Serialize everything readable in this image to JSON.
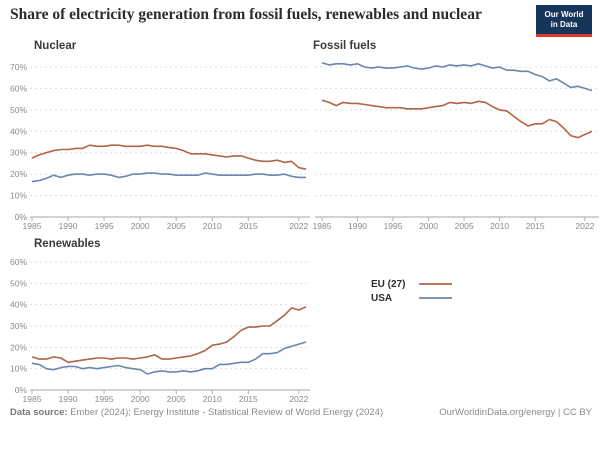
{
  "header": {
    "title": "Share of electricity generation from fossil fuels, renewables and nuclear",
    "logo": {
      "line1": "Our World",
      "line2": "in Data"
    }
  },
  "legend": {
    "entries": [
      {
        "label": "EU (27)",
        "color": "#a85332"
      },
      {
        "label": "USA",
        "color": "#5b7aa6"
      }
    ]
  },
  "footer": {
    "datasource_label": "Data source:",
    "datasource_text": " Ember (2024); Energy Institute - Statistical Review of World Energy (2024)",
    "attribution": "OurWorldinData.org/energy | CC BY"
  },
  "colors": {
    "eu": "#a85332",
    "usa": "#5b7aa6",
    "grid": "#dddddd",
    "axis": "#a6a6a6",
    "tick": "#b0b0b0",
    "tick_text": "#8a8a8a"
  },
  "chart_data": [
    {
      "type": "line",
      "title": "Nuclear",
      "x": [
        1985,
        1986,
        1987,
        1988,
        1989,
        1990,
        1991,
        1992,
        1993,
        1994,
        1995,
        1996,
        1997,
        1998,
        1999,
        2000,
        2001,
        2002,
        2003,
        2004,
        2005,
        2006,
        2007,
        2008,
        2009,
        2010,
        2011,
        2012,
        2013,
        2014,
        2015,
        2016,
        2017,
        2018,
        2019,
        2020,
        2021,
        2022,
        2023
      ],
      "x_ticks": [
        1985,
        1990,
        1995,
        2000,
        2005,
        2010,
        2015,
        2022
      ],
      "ylim": [
        0,
        70
      ],
      "y_ticks": [
        0,
        10,
        20,
        30,
        40,
        50,
        60,
        70
      ],
      "show_y_labels": true,
      "grid": true,
      "series": [
        {
          "name": "EU (27)",
          "color": "#a85332",
          "values": [
            27.5,
            29,
            30,
            31,
            31.5,
            31.5,
            32,
            32,
            33.5,
            33,
            33,
            33.5,
            33.5,
            33,
            33,
            33,
            33.5,
            33,
            33,
            32.5,
            32,
            31,
            29.5,
            29.5,
            29.5,
            29,
            28.5,
            28,
            28.5,
            28.5,
            27.5,
            26.5,
            26,
            26,
            26.5,
            25.5,
            26,
            23,
            22.3
          ]
        },
        {
          "name": "USA",
          "color": "#5b7aa6",
          "values": [
            16.5,
            17,
            18,
            19.5,
            18.5,
            19.5,
            20,
            20,
            19.5,
            20,
            20,
            19.5,
            18.5,
            19,
            20,
            20,
            20.5,
            20.5,
            20,
            20,
            19.5,
            19.5,
            19.5,
            19.5,
            20.5,
            20,
            19.5,
            19.5,
            19.5,
            19.5,
            19.5,
            20,
            20,
            19.5,
            19.5,
            20,
            19,
            18.5,
            18.5
          ]
        }
      ]
    },
    {
      "type": "line",
      "title": "Fossil fuels",
      "x": [
        1985,
        1986,
        1987,
        1988,
        1989,
        1990,
        1991,
        1992,
        1993,
        1994,
        1995,
        1996,
        1997,
        1998,
        1999,
        2000,
        2001,
        2002,
        2003,
        2004,
        2005,
        2006,
        2007,
        2008,
        2009,
        2010,
        2011,
        2012,
        2013,
        2014,
        2015,
        2016,
        2017,
        2018,
        2019,
        2020,
        2021,
        2022,
        2023
      ],
      "x_ticks": [
        1985,
        1990,
        1995,
        2000,
        2005,
        2010,
        2015,
        2022
      ],
      "ylim": [
        0,
        70
      ],
      "y_ticks": [
        0,
        10,
        20,
        30,
        40,
        50,
        60,
        70
      ],
      "show_y_labels": false,
      "grid": true,
      "series": [
        {
          "name": "EU (27)",
          "color": "#a85332",
          "values": [
            54.5,
            53.5,
            52,
            53.5,
            53,
            53,
            52.5,
            52,
            51.5,
            51,
            51,
            51,
            50.5,
            50.5,
            50.5,
            51,
            51.5,
            52,
            53.5,
            53,
            53.5,
            53,
            54,
            53.5,
            51.5,
            50,
            49.5,
            47,
            44.5,
            42.5,
            43.5,
            43.5,
            45.5,
            44.5,
            41.5,
            38,
            37,
            38.5,
            40
          ]
        },
        {
          "name": "USA",
          "color": "#5b7aa6",
          "values": [
            72,
            71,
            71.5,
            71.5,
            71,
            71.5,
            70,
            69.5,
            70,
            69.5,
            69.5,
            70,
            70.5,
            69.5,
            69,
            69.5,
            70.5,
            70,
            71,
            70.5,
            71,
            70.5,
            71.5,
            70.5,
            69.5,
            70,
            68.5,
            68.5,
            68,
            68,
            66.5,
            65.5,
            63.5,
            64.5,
            62.5,
            60.5,
            61,
            60,
            59
          ]
        }
      ]
    },
    {
      "type": "line",
      "title": "Renewables",
      "x": [
        1985,
        1986,
        1987,
        1988,
        1989,
        1990,
        1991,
        1992,
        1993,
        1994,
        1995,
        1996,
        1997,
        1998,
        1999,
        2000,
        2001,
        2002,
        2003,
        2004,
        2005,
        2006,
        2007,
        2008,
        2009,
        2010,
        2011,
        2012,
        2013,
        2014,
        2015,
        2016,
        2017,
        2018,
        2019,
        2020,
        2021,
        2022,
        2023
      ],
      "x_ticks": [
        1985,
        1990,
        1995,
        2000,
        2005,
        2010,
        2015,
        2022
      ],
      "ylim": [
        0,
        60
      ],
      "y_ticks": [
        0,
        10,
        20,
        30,
        40,
        50,
        60
      ],
      "show_y_labels": true,
      "grid": true,
      "series": [
        {
          "name": "EU (27)",
          "color": "#a85332",
          "values": [
            15.5,
            14.5,
            14.5,
            15.5,
            15,
            13,
            13.5,
            14,
            14.5,
            15,
            15,
            14.5,
            15,
            15,
            14.5,
            15,
            15.5,
            16.5,
            14.5,
            14.5,
            15,
            15.5,
            16,
            17,
            18.5,
            21,
            21.5,
            22.5,
            25,
            28,
            29.5,
            29.5,
            30,
            30,
            32.5,
            35,
            38.5,
            37.5,
            39
          ]
        },
        {
          "name": "USA",
          "color": "#5b7aa6",
          "values": [
            12.5,
            12,
            10,
            9.5,
            10.5,
            11,
            11,
            10,
            10.5,
            10,
            10.5,
            11,
            11.5,
            10.5,
            10,
            9.5,
            7.5,
            8.5,
            9,
            8.5,
            8.5,
            9,
            8.5,
            9,
            10,
            10,
            12,
            12,
            12.5,
            13,
            13,
            14.5,
            17,
            17,
            17.5,
            19.5,
            20.5,
            21.5,
            22.5
          ]
        }
      ]
    }
  ]
}
